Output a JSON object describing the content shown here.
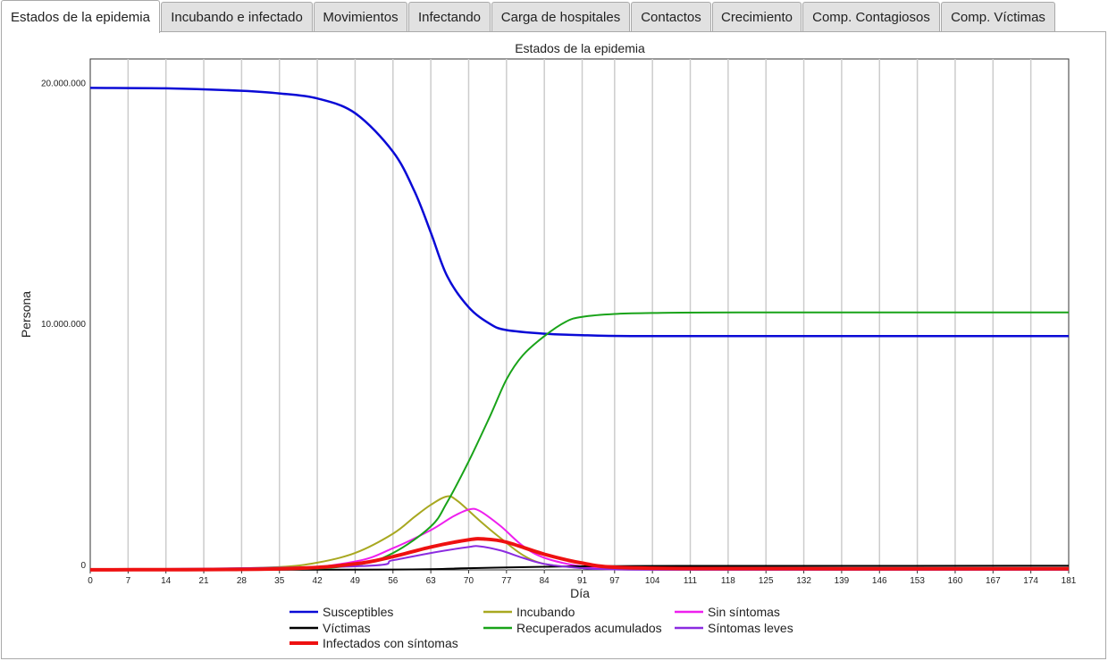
{
  "tabs": [
    {
      "label": "Estados de la epidemia",
      "active": true
    },
    {
      "label": "Incubando e infectado"
    },
    {
      "label": "Movimientos"
    },
    {
      "label": "Infectando"
    },
    {
      "label": "Carga de hospitales"
    },
    {
      "label": "Contactos"
    },
    {
      "label": "Crecimiento"
    },
    {
      "label": "Comp. Contagiosos"
    },
    {
      "label": "Comp. Víctimas"
    }
  ],
  "chart_data": {
    "type": "line",
    "title": "Estados de la epidemia",
    "xlabel": "Día",
    "ylabel": "Persona",
    "xlim": [
      0,
      181
    ],
    "ylim": [
      0,
      21200000
    ],
    "x_ticks": [
      0,
      7,
      14,
      21,
      28,
      35,
      42,
      49,
      56,
      63,
      70,
      77,
      84,
      91,
      97,
      104,
      111,
      118,
      125,
      132,
      139,
      146,
      153,
      160,
      167,
      174,
      181
    ],
    "y_ticks": [
      {
        "value": 0,
        "label": "0"
      },
      {
        "value": 10000000,
        "label": "10.000.000"
      },
      {
        "value": 20000000,
        "label": "20.000.000"
      }
    ],
    "grid": "vertical",
    "legend_position": "bottom",
    "series": [
      {
        "name": "Susceptibles",
        "color": "#0a0ad6",
        "width": 2.5,
        "points": [
          [
            0,
            20000000
          ],
          [
            14,
            19980000
          ],
          [
            28,
            19880000
          ],
          [
            35,
            19770000
          ],
          [
            42,
            19560000
          ],
          [
            49,
            18950000
          ],
          [
            56,
            17350000
          ],
          [
            60,
            15700000
          ],
          [
            63,
            14000000
          ],
          [
            66,
            12200000
          ],
          [
            70,
            10900000
          ],
          [
            74,
            10200000
          ],
          [
            77,
            9950000
          ],
          [
            84,
            9800000
          ],
          [
            91,
            9740000
          ],
          [
            100,
            9700000
          ],
          [
            120,
            9700000
          ],
          [
            150,
            9700000
          ],
          [
            181,
            9700000
          ]
        ]
      },
      {
        "name": "Incubando",
        "color": "#a8a820",
        "width": 2,
        "points": [
          [
            0,
            30000
          ],
          [
            21,
            40000
          ],
          [
            35,
            120000
          ],
          [
            42,
            300000
          ],
          [
            49,
            700000
          ],
          [
            56,
            1500000
          ],
          [
            60,
            2200000
          ],
          [
            63,
            2700000
          ],
          [
            66,
            3050000
          ],
          [
            68,
            2850000
          ],
          [
            72,
            2050000
          ],
          [
            76,
            1300000
          ],
          [
            80,
            620000
          ],
          [
            84,
            250000
          ],
          [
            91,
            80000
          ],
          [
            97,
            20000
          ],
          [
            110,
            10000
          ],
          [
            181,
            10000
          ]
        ]
      },
      {
        "name": "Sin síntomas",
        "color": "#ee1fee",
        "width": 2,
        "points": [
          [
            0,
            10000
          ],
          [
            35,
            40000
          ],
          [
            49,
            350000
          ],
          [
            56,
            900000
          ],
          [
            63,
            1650000
          ],
          [
            67,
            2200000
          ],
          [
            70,
            2500000
          ],
          [
            72,
            2450000
          ],
          [
            76,
            1800000
          ],
          [
            80,
            1000000
          ],
          [
            84,
            500000
          ],
          [
            91,
            140000
          ],
          [
            97,
            40000
          ],
          [
            110,
            10000
          ],
          [
            181,
            10000
          ]
        ]
      },
      {
        "name": "Víctimas",
        "color": "#000000",
        "width": 2,
        "points": [
          [
            0,
            0
          ],
          [
            56,
            15000
          ],
          [
            70,
            70000
          ],
          [
            84,
            130000
          ],
          [
            97,
            160000
          ],
          [
            120,
            165000
          ],
          [
            181,
            170000
          ]
        ]
      },
      {
        "name": "Recuperados acumulados",
        "color": "#19a319",
        "width": 2,
        "points": [
          [
            0,
            0
          ],
          [
            35,
            20000
          ],
          [
            49,
            200000
          ],
          [
            56,
            700000
          ],
          [
            63,
            1800000
          ],
          [
            66,
            2800000
          ],
          [
            70,
            4500000
          ],
          [
            74,
            6400000
          ],
          [
            77,
            7900000
          ],
          [
            80,
            8900000
          ],
          [
            84,
            9700000
          ],
          [
            88,
            10300000
          ],
          [
            91,
            10500000
          ],
          [
            97,
            10620000
          ],
          [
            104,
            10660000
          ],
          [
            120,
            10680000
          ],
          [
            181,
            10680000
          ]
        ]
      },
      {
        "name": "Síntomas leves",
        "color": "#8b2be0",
        "width": 2,
        "points": [
          [
            0,
            5000
          ],
          [
            49,
            150000
          ],
          [
            56,
            400000
          ],
          [
            63,
            700000
          ],
          [
            70,
            950000
          ],
          [
            72,
            980000
          ],
          [
            76,
            800000
          ],
          [
            80,
            500000
          ],
          [
            84,
            250000
          ],
          [
            91,
            70000
          ],
          [
            97,
            20000
          ],
          [
            110,
            5000
          ],
          [
            181,
            5000
          ]
        ]
      },
      {
        "name": "Infectados con síntomas",
        "color": "#ee1111",
        "width": 4,
        "points": [
          [
            0,
            5000
          ],
          [
            35,
            40000
          ],
          [
            49,
            250000
          ],
          [
            56,
            550000
          ],
          [
            63,
            950000
          ],
          [
            70,
            1250000
          ],
          [
            73,
            1280000
          ],
          [
            77,
            1150000
          ],
          [
            84,
            650000
          ],
          [
            91,
            280000
          ],
          [
            97,
            110000
          ],
          [
            110,
            55000
          ],
          [
            140,
            50000
          ],
          [
            181,
            50000
          ]
        ]
      }
    ]
  }
}
